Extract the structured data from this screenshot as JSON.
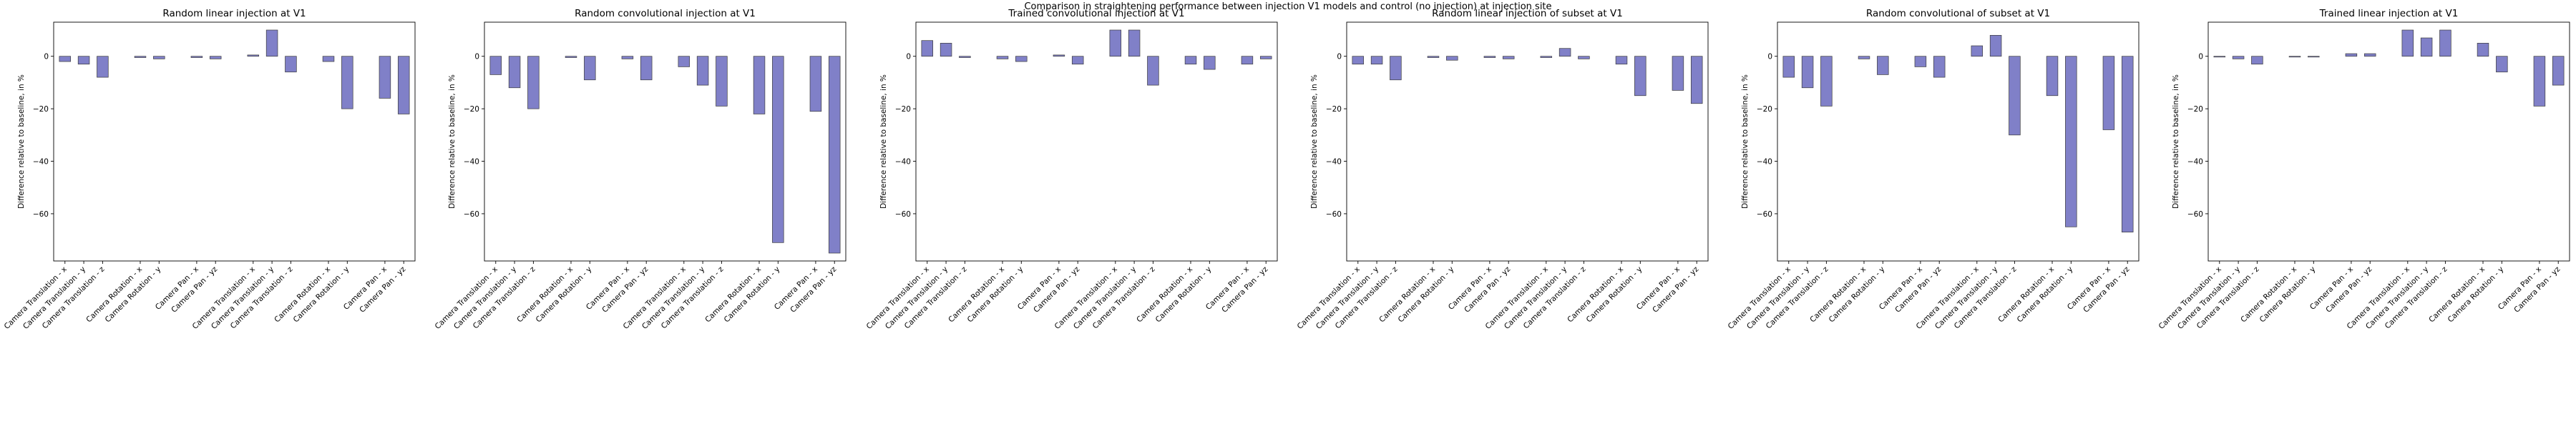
{
  "suptitle": "Comparison in straightening performance between injection V1 models and control (no injection) at injection site",
  "chart_data": [
    {
      "type": "bar",
      "title": "Random linear injection at V1",
      "ylabel": "Difference relative to baseline, in %",
      "ylim": [
        -78,
        13
      ],
      "yticks": [
        0,
        -20,
        -40,
        -60
      ],
      "categories": [
        "Camera Translation - x",
        "Camera Translation - y",
        "Camera Translation - z",
        "Camera Rotation - x",
        "Camera Rotation - y",
        "Camera Pan - x",
        "Camera Pan - yz",
        "Camera Translation - x",
        "Camera Translation - y",
        "Camera Translation - z",
        "Camera Rotation - x",
        "Camera Rotation - y",
        "Camera Pan - x",
        "Camera Pan - yz"
      ],
      "positions": [
        0,
        1,
        2,
        4,
        5,
        7,
        8,
        10,
        11,
        12,
        14,
        15,
        17,
        18
      ],
      "values": [
        -2,
        -3,
        -8,
        -0.5,
        -1,
        -0.5,
        -1,
        0.5,
        10,
        -6,
        -2,
        -20,
        -16,
        -22
      ]
    },
    {
      "type": "bar",
      "title": "Random convolutional injection at V1",
      "ylabel": "Difference relative to baseline, in %",
      "ylim": [
        -78,
        13
      ],
      "yticks": [
        0,
        -20,
        -40,
        -60
      ],
      "categories": [
        "Camera Translation - x",
        "Camera Translation - y",
        "Camera Translation - z",
        "Camera Rotation - x",
        "Camera Rotation - y",
        "Camera Pan - x",
        "Camera Pan - yz",
        "Camera Translation - x",
        "Camera Translation - y",
        "Camera Translation - z",
        "Camera Rotation - x",
        "Camera Rotation - y",
        "Camera Pan - x",
        "Camera Pan - yz"
      ],
      "positions": [
        0,
        1,
        2,
        4,
        5,
        7,
        8,
        10,
        11,
        12,
        14,
        15,
        17,
        18
      ],
      "values": [
        -7,
        -12,
        -20,
        -0.5,
        -9,
        -1,
        -9,
        -4,
        -11,
        -19,
        -22,
        -71,
        -21,
        -75
      ]
    },
    {
      "type": "bar",
      "title": "Trained convolutional injection at V1",
      "ylabel": "Difference relative to baseline, in %",
      "ylim": [
        -78,
        13
      ],
      "yticks": [
        0,
        -20,
        -40,
        -60
      ],
      "categories": [
        "Camera Translation - x",
        "Camera Translation - y",
        "Camera Translation - z",
        "Camera Rotation - x",
        "Camera Rotation - y",
        "Camera Pan - x",
        "Camera Pan - yz",
        "Camera Translation - x",
        "Camera Translation - y",
        "Camera Translation - z",
        "Camera Rotation - x",
        "Camera Rotation - y",
        "Camera Pan - x",
        "Camera Pan - yz"
      ],
      "positions": [
        0,
        1,
        2,
        4,
        5,
        7,
        8,
        10,
        11,
        12,
        14,
        15,
        17,
        18
      ],
      "values": [
        6,
        5,
        -0.5,
        -1,
        -2,
        0.5,
        -3,
        10,
        10,
        -11,
        -3,
        -5,
        -3,
        -1
      ]
    },
    {
      "type": "bar",
      "title": "Random linear injection of subset at V1",
      "ylabel": "Difference relative to baseline, in %",
      "ylim": [
        -78,
        13
      ],
      "yticks": [
        0,
        -20,
        -40,
        -60
      ],
      "categories": [
        "Camera Translation - x",
        "Camera Translation - y",
        "Camera Translation - z",
        "Camera Rotation - x",
        "Camera Rotation - y",
        "Camera Pan - x",
        "Camera Pan - yz",
        "Camera Translation - x",
        "Camera Translation - y",
        "Camera Translation - z",
        "Camera Rotation - x",
        "Camera Rotation - y",
        "Camera Pan - x",
        "Camera Pan - yz"
      ],
      "positions": [
        0,
        1,
        2,
        4,
        5,
        7,
        8,
        10,
        11,
        12,
        14,
        15,
        17,
        18
      ],
      "values": [
        -3,
        -3,
        -9,
        -0.5,
        -1.5,
        -0.5,
        -1,
        -0.5,
        3,
        -1,
        -3,
        -15,
        -13,
        -18
      ]
    },
    {
      "type": "bar",
      "title": "Random convolutional of subset at V1",
      "ylabel": "Difference relative to baseline, in %",
      "ylim": [
        -78,
        13
      ],
      "yticks": [
        0,
        -20,
        -40,
        -60
      ],
      "categories": [
        "Camera Translation - x",
        "Camera Translation - y",
        "Camera Translation - z",
        "Camera Rotation - x",
        "Camera Rotation - y",
        "Camera Pan - x",
        "Camera Pan - yz",
        "Camera Translation - x",
        "Camera Translation - y",
        "Camera Translation - z",
        "Camera Rotation - x",
        "Camera Rotation - y",
        "Camera Pan - x",
        "Camera Pan - yz"
      ],
      "positions": [
        0,
        1,
        2,
        4,
        5,
        7,
        8,
        10,
        11,
        12,
        14,
        15,
        17,
        18
      ],
      "values": [
        -8,
        -12,
        -19,
        -1,
        -7,
        -4,
        -8,
        4,
        8,
        -30,
        -15,
        -65,
        -28,
        -67
      ]
    },
    {
      "type": "bar",
      "title": "Trained linear injection at V1",
      "ylabel": "Difference relative to baseline, in %",
      "ylim": [
        -78,
        13
      ],
      "yticks": [
        0,
        -20,
        -40,
        -60
      ],
      "categories": [
        "Camera Translation - x",
        "Camera Translation - y",
        "Camera Translation - z",
        "Camera Rotation - x",
        "Camera Rotation - y",
        "Camera Pan - x",
        "Camera Pan - yz",
        "Camera Translation - x",
        "Camera Translation - y",
        "Camera Translation - z",
        "Camera Rotation - x",
        "Camera Rotation - y",
        "Camera Pan - x",
        "Camera Pan - yz"
      ],
      "positions": [
        0,
        1,
        2,
        4,
        5,
        7,
        8,
        10,
        11,
        12,
        14,
        15,
        17,
        18
      ],
      "values": [
        -0.3,
        -1,
        -3,
        -0.3,
        -0.3,
        1,
        1,
        10,
        7,
        10,
        5,
        -6,
        -19,
        -11
      ]
    }
  ]
}
